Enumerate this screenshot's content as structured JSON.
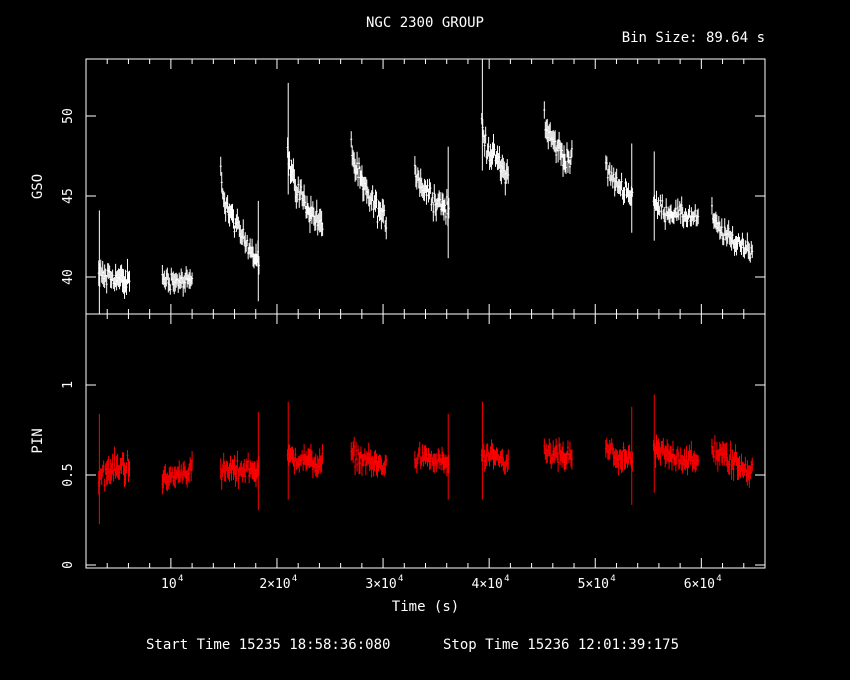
{
  "title": "NGC 2300 GROUP",
  "bin_size": "Bin Size: 89.64 s",
  "footer": {
    "start": "Start Time 15235 18:58:36:080",
    "stop": "Stop Time 15236 12:01:39:175"
  },
  "colors": {
    "top": "#ffffff",
    "bottom": "#ff0000",
    "axes": "#ffffff",
    "background": "#000000"
  },
  "chart_data": [
    {
      "type": "scatter",
      "panel": "top",
      "ylabel": "GSO",
      "xlabel": "",
      "xlim": [
        2000,
        66000
      ],
      "ylim": [
        37.5,
        53.5
      ],
      "yticks": [
        "40",
        "45",
        "50"
      ],
      "segments": [
        {
          "t": [
            3200,
            6100
          ],
          "y0": 40.0,
          "y1": 39.6,
          "noise": 1.0
        },
        {
          "t": [
            9200,
            12000
          ],
          "y0": 39.8,
          "y1": 39.5,
          "noise": 0.8
        },
        {
          "t": [
            14700,
            18300
          ],
          "y0": 46.5,
          "y1": 41.0,
          "noise": 0.9
        },
        {
          "t": [
            21000,
            24300
          ],
          "y0": 48.0,
          "y1": 43.0,
          "noise": 1.0
        },
        {
          "t": [
            27000,
            30300
          ],
          "y0": 48.5,
          "y1": 43.3,
          "noise": 1.0
        },
        {
          "t": [
            33000,
            36200
          ],
          "y0": 47.0,
          "y1": 44.0,
          "noise": 1.0
        },
        {
          "t": [
            39300,
            41800
          ],
          "y0": 49.5,
          "y1": 46.3,
          "noise": 1.0
        },
        {
          "t": [
            45200,
            47800
          ],
          "y0": 50.0,
          "y1": 47.0,
          "noise": 1.0
        },
        {
          "t": [
            51000,
            53500
          ],
          "y0": 47.0,
          "y1": 45.0,
          "noise": 0.8
        },
        {
          "t": [
            55500,
            59700
          ],
          "y0": 44.5,
          "y1": 43.5,
          "noise": 0.8
        },
        {
          "t": [
            61000,
            64800
          ],
          "y0": 43.8,
          "y1": 41.5,
          "noise": 0.8
        }
      ]
    },
    {
      "type": "scatter",
      "panel": "bottom",
      "ylabel": "PIN",
      "xlabel": "Time (s)",
      "xlim": [
        2000,
        66000
      ],
      "ylim": [
        -0.05,
        1.4
      ],
      "yticks": [
        "0",
        "0.5",
        "1"
      ],
      "xticks": [
        {
          "value": 10000,
          "base": "10",
          "exp": "4"
        },
        {
          "value": 20000,
          "base": "2×10",
          "exp": "4"
        },
        {
          "value": 30000,
          "base": "3×10",
          "exp": "4"
        },
        {
          "value": 40000,
          "base": "4×10",
          "exp": "4"
        },
        {
          "value": 50000,
          "base": "5×10",
          "exp": "4"
        },
        {
          "value": 60000,
          "base": "6×10",
          "exp": "4"
        }
      ],
      "segments": [
        {
          "t": [
            3200,
            6100
          ],
          "y0": 0.47,
          "y1": 0.55,
          "noise": 0.09
        },
        {
          "t": [
            9200,
            12000
          ],
          "y0": 0.44,
          "y1": 0.52,
          "noise": 0.08
        },
        {
          "t": [
            14700,
            18300
          ],
          "y0": 0.5,
          "y1": 0.52,
          "noise": 0.08
        },
        {
          "t": [
            21000,
            24300
          ],
          "y0": 0.58,
          "y1": 0.55,
          "noise": 0.08
        },
        {
          "t": [
            27000,
            30300
          ],
          "y0": 0.6,
          "y1": 0.52,
          "noise": 0.08
        },
        {
          "t": [
            33000,
            36200
          ],
          "y0": 0.58,
          "y1": 0.55,
          "noise": 0.07
        },
        {
          "t": [
            39300,
            41800
          ],
          "y0": 0.58,
          "y1": 0.55,
          "noise": 0.08
        },
        {
          "t": [
            45200,
            47800
          ],
          "y0": 0.6,
          "y1": 0.58,
          "noise": 0.08
        },
        {
          "t": [
            51000,
            53500
          ],
          "y0": 0.62,
          "y1": 0.55,
          "noise": 0.08
        },
        {
          "t": [
            55500,
            59700
          ],
          "y0": 0.62,
          "y1": 0.55,
          "noise": 0.08
        },
        {
          "t": [
            61000,
            64800
          ],
          "y0": 0.62,
          "y1": 0.5,
          "noise": 0.09
        }
      ]
    }
  ]
}
